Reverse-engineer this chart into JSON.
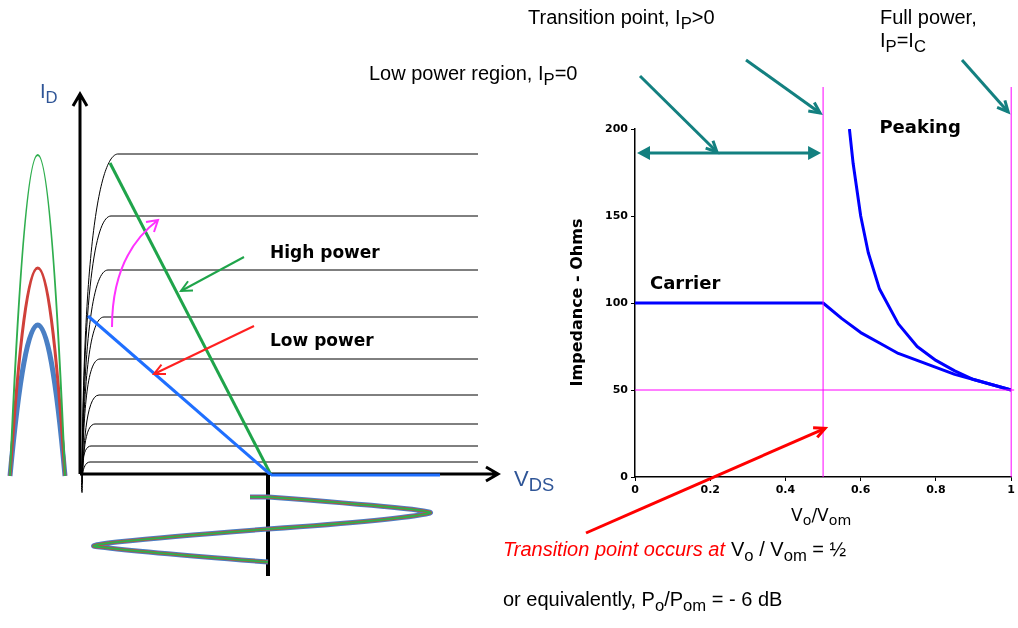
{
  "chart_data": [
    {
      "type": "other",
      "xlabel": "V$_{DS}$",
      "ylabel": "I$_{D}$",
      "annotations": [
        "High power",
        "Low power"
      ]
    },
    {
      "type": "line",
      "xlabel": "V$_{o}$/V$_{om}$",
      "ylabel": "Impedance - Ohms",
      "xlim": [
        0,
        1
      ],
      "xticks": [
        0,
        0.2,
        0.4,
        0.6,
        0.8,
        1
      ],
      "ylim": [
        0,
        200
      ],
      "yticks": [
        0,
        50,
        100,
        150,
        200
      ],
      "grid": false,
      "legend": false,
      "marker": "none",
      "series": [
        {
          "name": "Carrier",
          "color": "#0000ff",
          "x": [
            0,
            0.5,
            0.55,
            0.6,
            0.65,
            0.7,
            0.75,
            0.8,
            0.85,
            0.9,
            0.95,
            1
          ],
          "values": [
            100,
            100,
            91,
            83,
            77,
            71,
            67,
            63,
            59,
            56,
            53,
            50
          ]
        },
        {
          "name": "Peaking",
          "color": "#0000ff",
          "x": [
            0.57,
            0.58,
            0.6,
            0.62,
            0.65,
            0.7,
            0.75,
            0.8,
            0.85,
            0.9,
            0.95,
            1
          ],
          "values": [
            200,
            180,
            150,
            129,
            108,
            88,
            75,
            67,
            61,
            56,
            53,
            50
          ]
        }
      ],
      "ref_lines": [
        {
          "axis": "y",
          "value": 50,
          "color": "#ff00ff"
        },
        {
          "axis": "x",
          "value": 0.5,
          "color": "#ff00ff"
        },
        {
          "axis": "x",
          "value": 1,
          "color": "#ff00ff"
        }
      ],
      "annotations": [
        "Low power region, I$_{P}$=0",
        "Transition point, I$_{P}$>0",
        "Full power, I$_{P}$=I$_{C}$",
        "Transition point occurs at",
        "V$_{o}$ / V$_{om}$ = ½",
        "or equivalently, P$_{o}$/P$_{om}$ = - 6 dB"
      ]
    }
  ]
}
